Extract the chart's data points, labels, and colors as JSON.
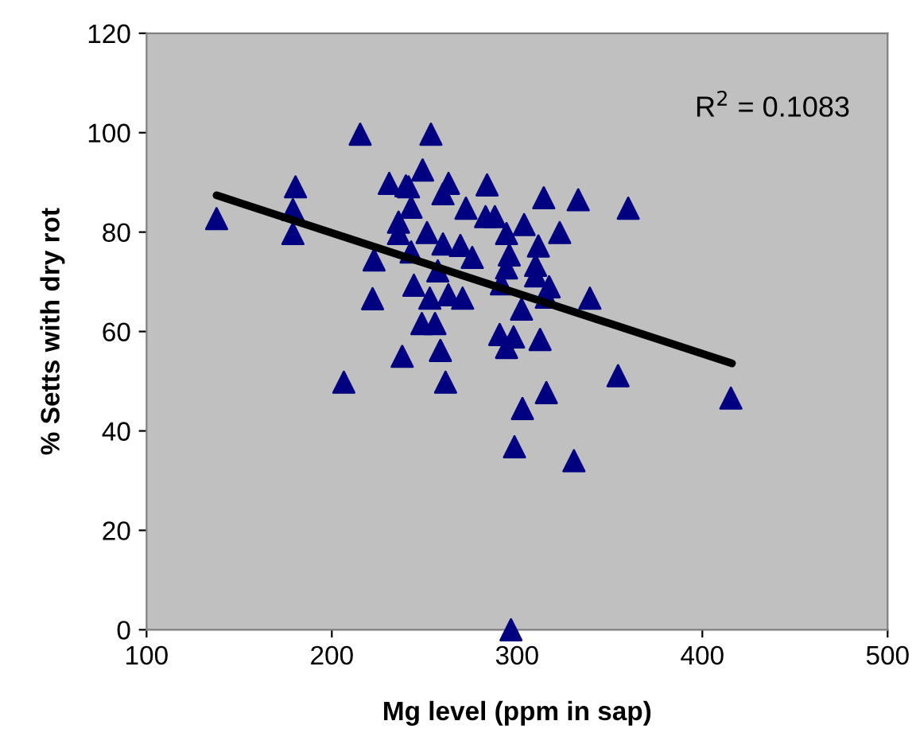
{
  "chart_data": {
    "type": "scatter",
    "xlabel": "Mg level (ppm in sap)",
    "ylabel": "% Setts with dry rot",
    "annotations": [
      "R$^{2}$ = 0.1083"
    ],
    "series": [
      {
        "color": "#000080",
        "marker": "triangle",
        "x": [
          137.8,
          180.4,
          179,
          179,
          215.3,
          231,
          240,
          236,
          236,
          222.8,
          222,
          238,
          206.5,
          253.5,
          249,
          241.4,
          263,
          260,
          283.8,
          314.4,
          333,
          360,
          242.8,
          272.4,
          283,
          288,
          303.8,
          294.3,
          323,
          251.4,
          260,
          269.4,
          275.8,
          311.5,
          295.8,
          242.8,
          294.3,
          310,
          310,
          257.2,
          317.3,
          291.5,
          244.3,
          252.9,
          262.9,
          270.6,
          339.3,
          315.8,
          302.4,
          248.6,
          255.7,
          290.6,
          298.1,
          312.4,
          258.6,
          294.3,
          261.4,
          354.5,
          415.4,
          315.8,
          302.9,
          298.6,
          330.7,
          296.7
        ],
        "values": [
          82.7,
          89.1,
          84.5,
          79.7,
          99.7,
          89.8,
          89.3,
          82,
          79.7,
          74.4,
          66.6,
          55,
          49.8,
          99.7,
          92.5,
          89.1,
          89.8,
          87.7,
          89.5,
          86.9,
          86.5,
          84.8,
          85,
          84.8,
          83.1,
          83.1,
          81.5,
          79.7,
          79.9,
          79.9,
          77.6,
          77.3,
          74.9,
          77.2,
          75.4,
          76,
          72.8,
          73.3,
          71.2,
          72.2,
          69,
          69.6,
          69.3,
          66.7,
          67.4,
          66.7,
          66.7,
          66.9,
          64.5,
          61.6,
          61.6,
          59.4,
          58.9,
          58.4,
          56.2,
          56.8,
          49.8,
          51.1,
          46.6,
          47.7,
          44.5,
          36.8,
          34,
          0
        ]
      },
      {
        "type": "line",
        "color": "#000000",
        "x": [
          137.8,
          416
        ],
        "values": [
          87.4,
          53.6
        ]
      }
    ],
    "xlim": [
      100,
      500
    ],
    "xticks": [
      100,
      200,
      300,
      400,
      500
    ],
    "ylim": [
      0,
      120
    ],
    "yticks": [
      0,
      20,
      40,
      60,
      80,
      100,
      120
    ],
    "grid": false,
    "legend": false
  }
}
